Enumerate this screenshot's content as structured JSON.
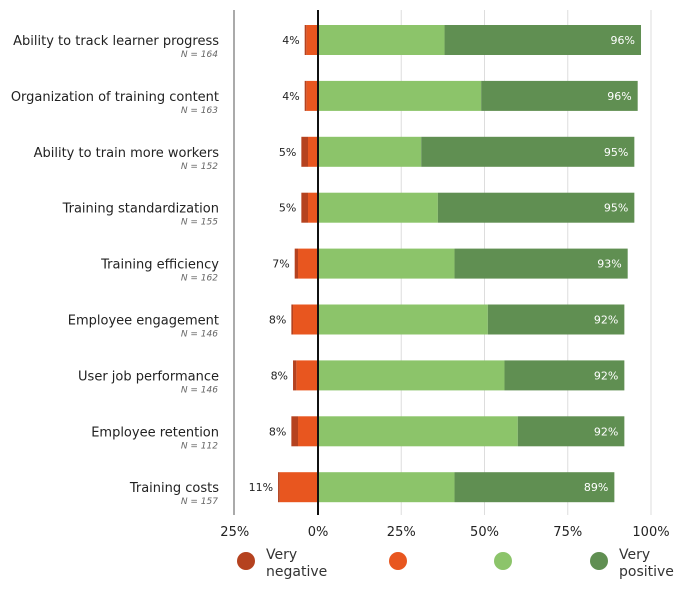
{
  "chart_data": {
    "type": "bar",
    "orientation": "horizontal",
    "stacked": "diverging",
    "categories": [
      "Ability to track learner progress",
      "Organization of training content",
      "Ability to train more workers",
      "Training standardization",
      "Training efficiency",
      "Employee engagement",
      "User job performance",
      "Employee retention",
      "Training costs"
    ],
    "n_labels": [
      "N = 164",
      "N = 163",
      "N = 152",
      "N = 155",
      "N = 162",
      "N = 146",
      "N = 146",
      "N = 112",
      "N = 157"
    ],
    "series": [
      {
        "name": "Very negative",
        "color": "#b5421f",
        "values": [
          0.5,
          0.5,
          2.0,
          2.0,
          1.0,
          0.5,
          1.0,
          2.0,
          0.5
        ]
      },
      {
        "name": "",
        "color": "#e8561f",
        "values": [
          3.5,
          3.5,
          3.0,
          3.0,
          6.0,
          7.5,
          6.5,
          6.0,
          11.5
        ]
      },
      {
        "name": "",
        "color": "#8cc46a",
        "values": [
          38,
          49,
          31,
          36,
          41,
          51,
          56,
          60,
          41
        ]
      },
      {
        "name": "Very positive",
        "color": "#608f52",
        "values": [
          59,
          47,
          64,
          59,
          52,
          41,
          36,
          32,
          48
        ]
      }
    ],
    "negative_totals": [
      "4%",
      "4%",
      "5%",
      "5%",
      "7%",
      "8%",
      "8%",
      "8%",
      "11%"
    ],
    "positive_totals": [
      "96%",
      "96%",
      "95%",
      "95%",
      "93%",
      "92%",
      "92%",
      "92%",
      "89%"
    ],
    "xticks": [
      "25%",
      "0%",
      "25%",
      "50%",
      "75%",
      "100%"
    ],
    "xlim": [
      -25,
      100
    ],
    "grid": true,
    "legend_position": "bottom",
    "colors": {
      "grid": "#dddddd",
      "zero_line": "#111111",
      "frame": "#555555"
    }
  }
}
